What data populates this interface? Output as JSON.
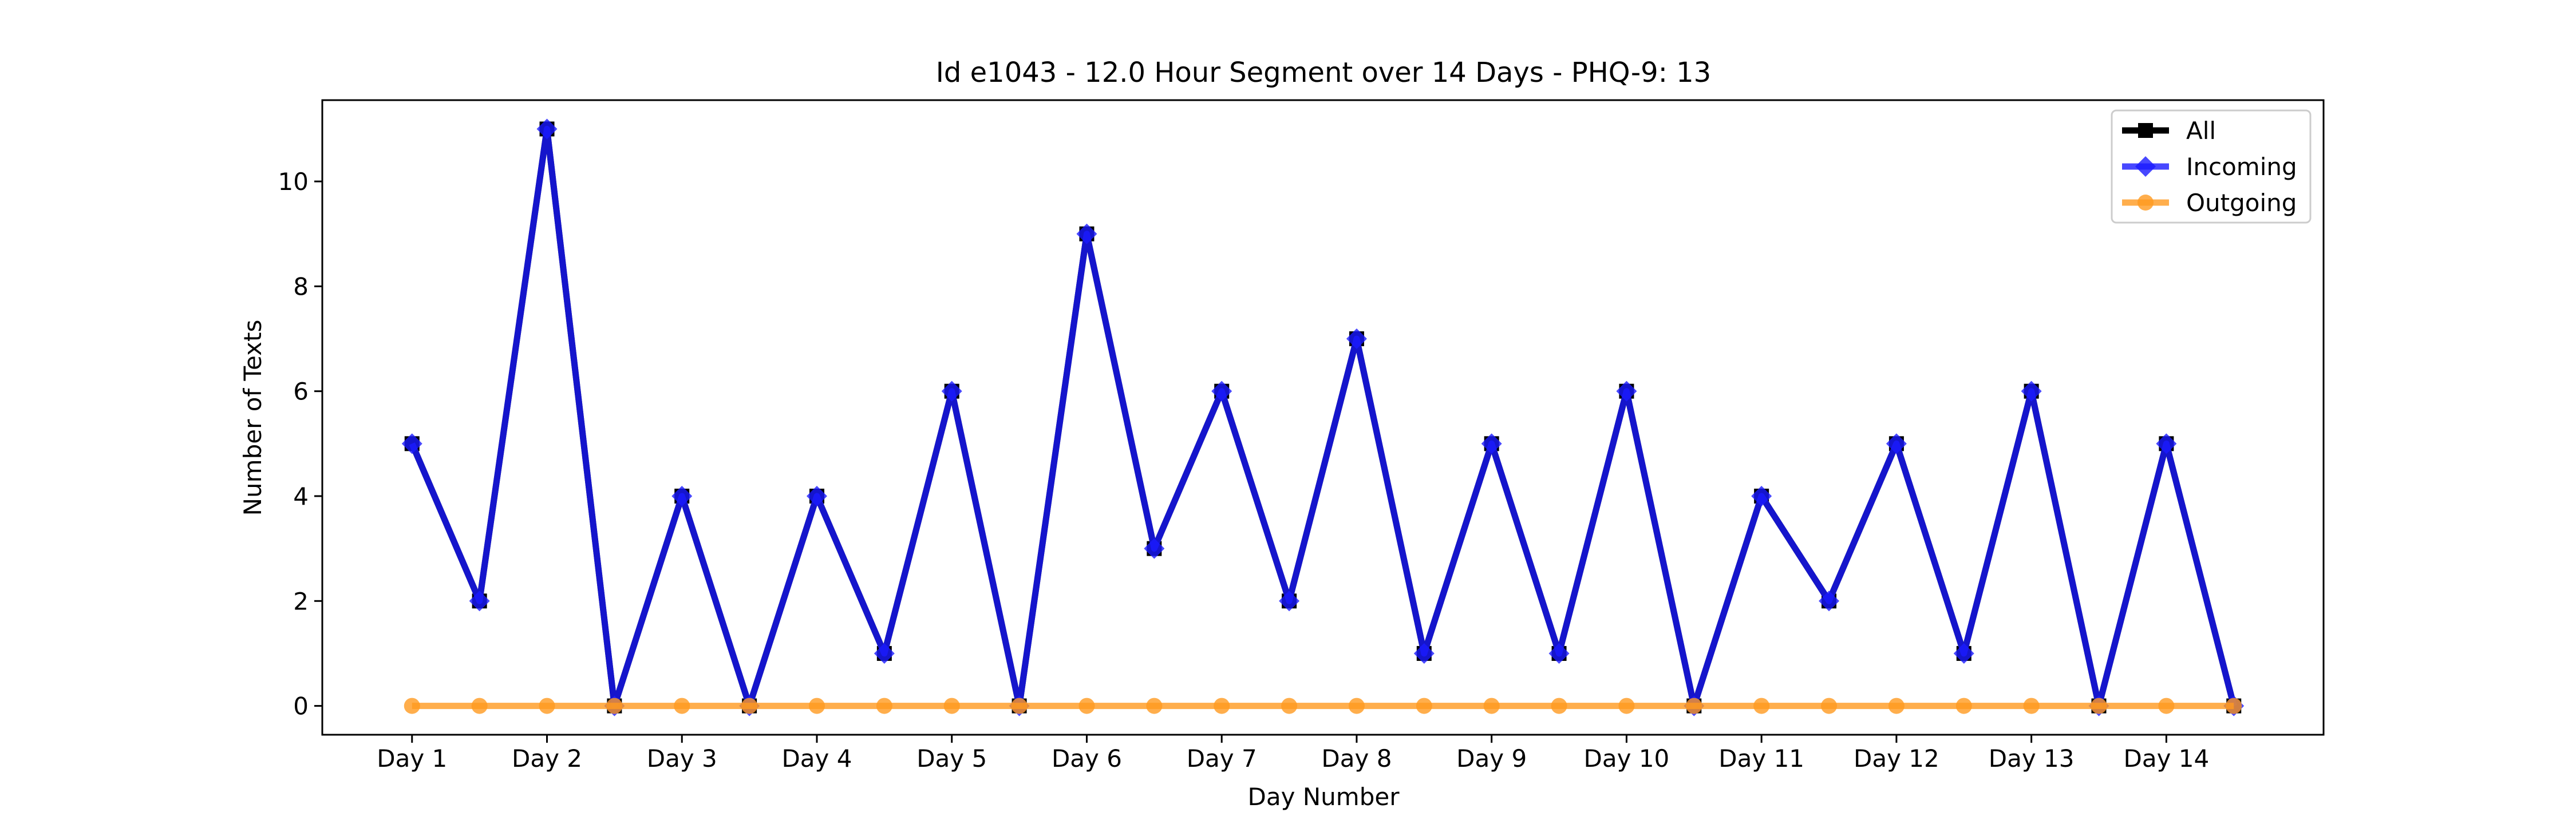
{
  "chart_data": {
    "type": "line",
    "title": "Id e1043 - 12.0 Hour Segment over 14 Days - PHQ-9: 13",
    "xlabel": "Day Number",
    "ylabel": "Number of Texts",
    "ylim": [
      -0.55,
      11.55
    ],
    "yticks": [
      0,
      2,
      4,
      6,
      8,
      10
    ],
    "x": [
      0,
      1,
      2,
      3,
      4,
      5,
      6,
      7,
      8,
      9,
      10,
      11,
      12,
      13,
      14,
      15,
      16,
      17,
      18,
      19,
      20,
      21,
      22,
      23,
      24,
      25,
      26,
      27
    ],
    "xlim": [
      -1.33,
      28.33
    ],
    "xticks": [
      0,
      2,
      4,
      6,
      8,
      10,
      12,
      14,
      16,
      18,
      20,
      22,
      24,
      26
    ],
    "xticklabels": [
      "Day 1",
      "Day 2",
      "Day 3",
      "Day 4",
      "Day 5",
      "Day 6",
      "Day 7",
      "Day 8",
      "Day 9",
      "Day 10",
      "Day 11",
      "Day 12",
      "Day 13",
      "Day 14"
    ],
    "grid": false,
    "legend_position": "top-right",
    "series": [
      {
        "name": "All",
        "color": "#000000",
        "marker": "square",
        "values": [
          5,
          2,
          11,
          0,
          4,
          0,
          4,
          1,
          6,
          0,
          9,
          3,
          6,
          2,
          7,
          1,
          5,
          1,
          6,
          0,
          4,
          2,
          5,
          1,
          6,
          0,
          5,
          0
        ]
      },
      {
        "name": "Incoming",
        "color": "#1a1aff",
        "marker": "diamond",
        "values": [
          5,
          2,
          11,
          0,
          4,
          0,
          4,
          1,
          6,
          0,
          9,
          3,
          6,
          2,
          7,
          1,
          5,
          1,
          6,
          0,
          4,
          2,
          5,
          1,
          6,
          0,
          5,
          0
        ]
      },
      {
        "name": "Outgoing",
        "color": "#ff9a1f",
        "marker": "circle",
        "values": [
          0,
          0,
          0,
          0,
          0,
          0,
          0,
          0,
          0,
          0,
          0,
          0,
          0,
          0,
          0,
          0,
          0,
          0,
          0,
          0,
          0,
          0,
          0,
          0,
          0,
          0,
          0,
          0
        ]
      }
    ]
  }
}
